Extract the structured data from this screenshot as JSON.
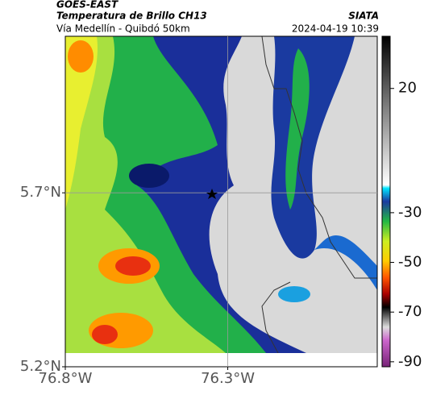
{
  "header": {
    "title": "GOES-EAST",
    "subtitle": "Temperatura de Brillo CH13",
    "route": "Vía Medellín - Quibdó 50km",
    "source": "SIATA",
    "datetime": "2024-04-19 10:39"
  },
  "map": {
    "lonlim": [
      -76.8,
      -75.84
    ],
    "latlim": [
      5.2,
      6.15
    ],
    "lon_ticks": [
      {
        "value": -76.8,
        "label": "76.8°W"
      },
      {
        "value": -76.3,
        "label": "76.3°W"
      }
    ],
    "lat_ticks": [
      {
        "value": 5.7,
        "label": "5.7°N"
      },
      {
        "value": 5.2,
        "label": "5.2°N"
      }
    ]
  },
  "colorbar": {
    "lim": [
      -92,
      41
    ],
    "ticks": [
      20,
      -30,
      -50,
      -70,
      -90
    ]
  }
}
